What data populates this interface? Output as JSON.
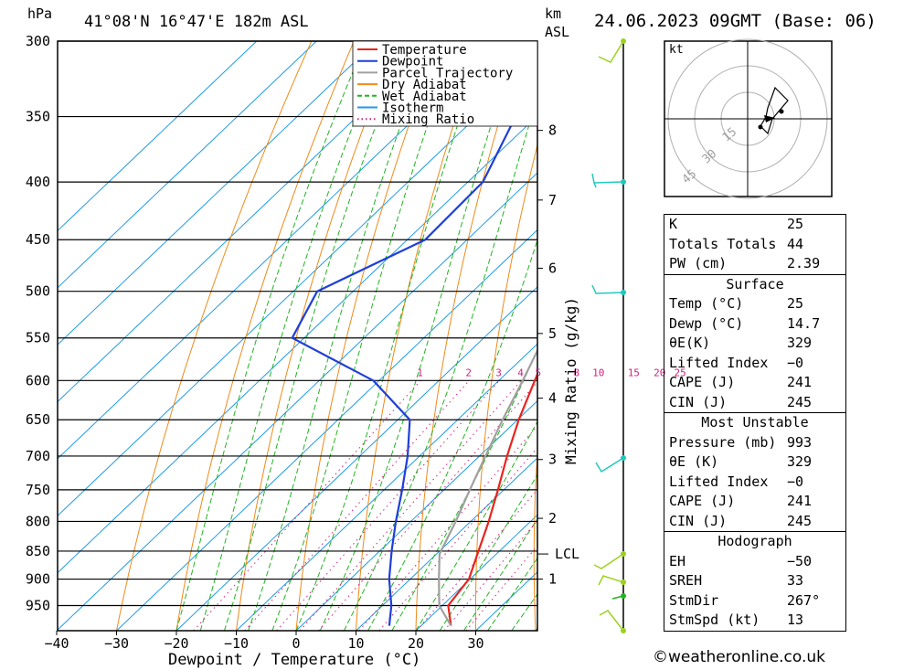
{
  "header": {
    "left_unit": "hPa",
    "location": "41°08'N  16°47'E  182m  ASL",
    "km_label": "km",
    "asl_label": "ASL",
    "datetime": "24.06.2023  09GMT  (Base: 06)"
  },
  "legend": [
    {
      "label": "Temperature",
      "color": "#e8241e",
      "style": "solid"
    },
    {
      "label": "Dewpoint",
      "color": "#1f3fd8",
      "style": "solid"
    },
    {
      "label": "Parcel Trajectory",
      "color": "#a0a0a0",
      "style": "solid"
    },
    {
      "label": "Dry Adiabat",
      "color": "#f08a18",
      "style": "solid"
    },
    {
      "label": "Wet Adiabat",
      "color": "#22b322",
      "style": "dashed"
    },
    {
      "label": "Isotherm",
      "color": "#1e9be6",
      "style": "solid"
    },
    {
      "label": "Mixing Ratio",
      "color": "#d0207f",
      "style": "dotted"
    }
  ],
  "chart_data": {
    "type": "line",
    "title": "41°08'N  16°47'E  182m  ASL",
    "xlabel": "Dewpoint / Temperature (°C)",
    "ylabel": "hPa",
    "y_scale": "log",
    "y_ticks": [
      300,
      350,
      400,
      450,
      500,
      550,
      600,
      650,
      700,
      750,
      800,
      850,
      900,
      950
    ],
    "x_ticks": [
      -40,
      -30,
      -20,
      -10,
      0,
      10,
      20,
      30
    ],
    "x_tick_labels": [
      "−40",
      "−30",
      "−20",
      "−10",
      "0",
      "10",
      "20",
      "30"
    ],
    "km_ticks": [
      {
        "km": 1,
        "label": "1"
      },
      {
        "km": 2,
        "label": "2"
      },
      {
        "km": 3,
        "label": "3"
      },
      {
        "km": 4,
        "label": "4"
      },
      {
        "km": 5,
        "label": "5"
      },
      {
        "km": 6,
        "label": "6"
      },
      {
        "km": 7,
        "label": "7"
      },
      {
        "km": 8,
        "label": "8"
      }
    ],
    "lcl_label": "LCL",
    "lcl_pressure": 855,
    "mixing_ratio_label": "Mixing Ratio (g/kg)",
    "mixing_ratio_values": [
      "1",
      "2",
      "3",
      "4",
      "5",
      "8",
      "10",
      "15",
      "20",
      "25"
    ],
    "series": [
      {
        "name": "Temperature",
        "color": "#e8241e",
        "points": [
          [
            990,
            25.0
          ],
          [
            950,
            21.0
          ],
          [
            900,
            19.8
          ],
          [
            850,
            16.5
          ],
          [
            800,
            13.0
          ],
          [
            750,
            9.0
          ],
          [
            700,
            4.6
          ],
          [
            650,
            0.2
          ],
          [
            600,
            -4.0
          ],
          [
            550,
            -8.4
          ],
          [
            500,
            -14.0
          ],
          [
            450,
            -20.0
          ],
          [
            400,
            -26.6
          ],
          [
            350,
            -34.5
          ],
          [
            300,
            -44.0
          ]
        ]
      },
      {
        "name": "Dewpoint",
        "color": "#1f3fd8",
        "points": [
          [
            990,
            14.7
          ],
          [
            950,
            11.5
          ],
          [
            900,
            6.5
          ],
          [
            850,
            2.0
          ],
          [
            800,
            -2.5
          ],
          [
            750,
            -7.0
          ],
          [
            700,
            -12.0
          ],
          [
            650,
            -18.0
          ],
          [
            600,
            -31.0
          ],
          [
            550,
            -52.0
          ],
          [
            500,
            -56.0
          ],
          [
            450,
            -47.0
          ],
          [
            400,
            -47.5
          ],
          [
            350,
            -53.5
          ],
          [
            300,
            -62.0
          ]
        ]
      },
      {
        "name": "Parcel Trajectory",
        "color": "#a0a0a0",
        "points": [
          [
            990,
            25.0
          ],
          [
            950,
            19.5
          ],
          [
            900,
            14.8
          ],
          [
            855,
            10.5
          ],
          [
            800,
            7.5
          ],
          [
            750,
            4.3
          ],
          [
            700,
            1.0
          ],
          [
            650,
            -2.5
          ],
          [
            600,
            -6.0
          ],
          [
            550,
            -10.0
          ],
          [
            500,
            -14.3
          ],
          [
            450,
            -19.8
          ],
          [
            400,
            -26.0
          ],
          [
            350,
            -33.6
          ],
          [
            300,
            -43.0
          ]
        ]
      }
    ]
  },
  "hodograph": {
    "unit": "kt",
    "ring_labels": [
      "15",
      "30",
      "45"
    ]
  },
  "indices": {
    "rows": [
      {
        "label": "K",
        "value": "25"
      },
      {
        "label": "Totals Totals",
        "value": "44"
      },
      {
        "label": "PW (cm)",
        "value": "2.39"
      }
    ]
  },
  "surface": {
    "title": "Surface",
    "rows": [
      {
        "label": "Temp (°C)",
        "value": "25"
      },
      {
        "label": "Dewp (°C)",
        "value": "14.7"
      },
      {
        "label": "θE(K)",
        "value": "329"
      },
      {
        "label": "Lifted Index",
        "value": "−0"
      },
      {
        "label": "CAPE (J)",
        "value": "241"
      },
      {
        "label": "CIN (J)",
        "value": "245"
      }
    ]
  },
  "most_unstable": {
    "title": "Most Unstable",
    "rows": [
      {
        "label": "Pressure (mb)",
        "value": "993"
      },
      {
        "label": "θE (K)",
        "value": "329"
      },
      {
        "label": "Lifted Index",
        "value": "−0"
      },
      {
        "label": "CAPE (J)",
        "value": "241"
      },
      {
        "label": "CIN (J)",
        "value": "245"
      }
    ]
  },
  "hodo_table": {
    "title": "Hodograph",
    "rows": [
      {
        "label": "EH",
        "value": "−50"
      },
      {
        "label": "SREH",
        "value": "33"
      },
      {
        "label": "StmDir",
        "value": "267°"
      },
      {
        "label": "StmSpd (kt)",
        "value": "13"
      }
    ]
  },
  "footer": {
    "copyright": "©weatheronline.co.uk"
  }
}
